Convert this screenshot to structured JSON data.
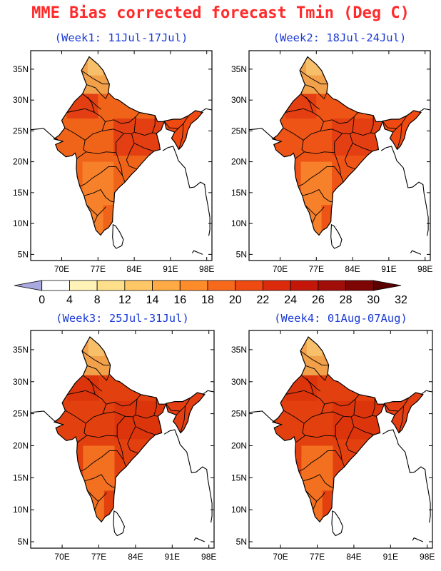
{
  "title": "MME Bias corrected forecast Tmin (Deg C)",
  "colors": {
    "title": "#ff2a2a",
    "panel_title": "#1a3ad6",
    "coast": "#000000",
    "levels": [
      "#a9a9e0",
      "#ffffff",
      "#fff3b8",
      "#ffe08a",
      "#ffc766",
      "#ffaa44",
      "#ff8c2a",
      "#f76a1c",
      "#ee4a12",
      "#dc2a0c",
      "#c4170a",
      "#a10d08",
      "#7d0504",
      "#5a0000"
    ]
  },
  "colorbar": {
    "labels": [
      "0",
      "4",
      "8",
      "12",
      "14",
      "16",
      "18",
      "20",
      "22",
      "24",
      "26",
      "28",
      "30",
      "32"
    ]
  },
  "axes": {
    "lon_ticks": [
      "70E",
      "77E",
      "84E",
      "91E",
      "98E"
    ],
    "lat_ticks": [
      "35N",
      "30N",
      "25N",
      "20N",
      "15N",
      "10N",
      "5N"
    ],
    "lon_values": [
      70,
      77,
      84,
      91,
      98
    ],
    "lat_values": [
      35,
      30,
      25,
      20,
      15,
      10,
      5
    ],
    "lon_range": [
      64,
      99
    ],
    "lat_range": [
      4,
      38
    ]
  },
  "panels": [
    {
      "title": "(Week1: 11Jul-17Jul)",
      "north": "#f2a04a",
      "central": "#f0641a",
      "south": "#f7802a",
      "east": "#e33f12",
      "ne": "#ee4a12"
    },
    {
      "title": "(Week2: 18Jul-24Jul)",
      "north": "#f2a04a",
      "central": "#ee5416",
      "south": "#f7802a",
      "east": "#e33f12",
      "ne": "#ee4a12"
    },
    {
      "title": "(Week3: 25Jul-31Jul)",
      "north": "#f2a04a",
      "central": "#e3400f",
      "south": "#f2701f",
      "east": "#dc350c",
      "ne": "#e33f12"
    },
    {
      "title": "(Week4: 01Aug-07Aug)",
      "north": "#f2a04a",
      "central": "#e3400f",
      "south": "#f2701f",
      "east": "#dc350c",
      "ne": "#e33f12"
    }
  ]
}
